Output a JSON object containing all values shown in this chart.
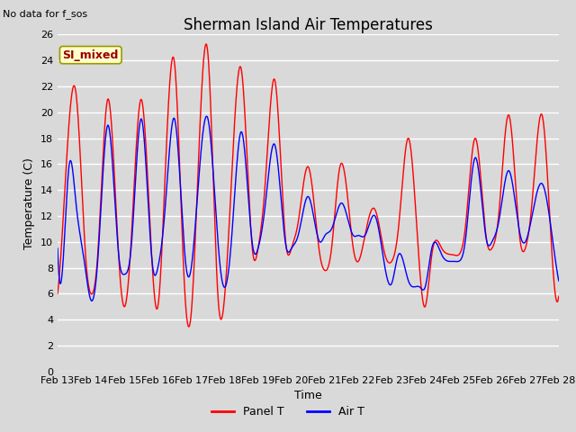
{
  "title": "Sherman Island Air Temperatures",
  "xlabel": "Time",
  "ylabel": "Temperature (C)",
  "top_left_text": "No data for f_sos",
  "legend_label_box": "SI_mixed",
  "legend_entries": [
    "Panel T",
    "Air T"
  ],
  "legend_colors": [
    "red",
    "blue"
  ],
  "ylim": [
    0,
    26
  ],
  "yticks": [
    0,
    2,
    4,
    6,
    8,
    10,
    12,
    14,
    16,
    18,
    20,
    22,
    24,
    26
  ],
  "xtick_labels": [
    "Feb 13",
    "Feb 14",
    "Feb 15",
    "Feb 16",
    "Feb 17",
    "Feb 18",
    "Feb 19",
    "Feb 20",
    "Feb 21",
    "Feb 22",
    "Feb 23",
    "Feb 24",
    "Feb 25",
    "Feb 26",
    "Feb 27",
    "Feb 28"
  ],
  "background_color": "#d9d9d9",
  "plot_bg_color": "#d9d9d9",
  "grid_color": "#f0f0f0",
  "box_facecolor": "#ffffcc",
  "box_edgecolor": "#999900",
  "box_text_color": "#990000",
  "title_fontsize": 12,
  "axis_label_fontsize": 9,
  "tick_fontsize": 8,
  "panel_key_x": [
    0.0,
    0.25,
    0.55,
    0.85,
    1.0,
    1.2,
    1.5,
    1.85,
    2.0,
    2.2,
    2.5,
    2.85,
    3.0,
    3.2,
    3.5,
    3.8,
    4.0,
    4.15,
    4.5,
    4.8,
    5.0,
    5.2,
    5.5,
    5.85,
    6.0,
    6.2,
    6.5,
    6.85,
    7.0,
    7.2,
    7.5,
    7.85,
    8.0,
    8.2,
    8.45,
    8.7,
    8.85,
    9.0,
    9.2,
    9.5,
    9.8,
    10.0,
    10.2,
    10.5,
    10.85,
    11.0,
    11.2,
    11.5,
    11.85,
    12.0,
    12.2,
    12.5,
    12.85,
    13.0,
    13.2,
    13.5,
    13.85,
    14.0,
    14.2,
    14.5,
    14.8,
    15.0
  ],
  "panel_key_y": [
    6.0,
    15.5,
    21.5,
    8.5,
    6.0,
    9.0,
    21.0,
    8.0,
    5.0,
    10.0,
    21.0,
    7.5,
    5.0,
    14.0,
    23.8,
    6.5,
    4.5,
    12.0,
    24.5,
    5.8,
    5.8,
    14.5,
    23.3,
    9.0,
    9.5,
    14.0,
    22.5,
    9.5,
    9.5,
    11.5,
    15.8,
    9.0,
    7.8,
    9.5,
    15.8,
    13.0,
    9.5,
    8.5,
    10.5,
    12.5,
    9.0,
    8.5,
    11.0,
    18.0,
    7.5,
    5.0,
    9.0,
    9.5,
    9.0,
    9.0,
    11.0,
    18.0,
    10.0,
    9.5,
    12.0,
    19.8,
    10.0,
    9.5,
    13.0,
    19.8,
    9.0,
    5.8
  ],
  "air_key_x": [
    0.0,
    0.15,
    0.35,
    0.55,
    0.8,
    1.0,
    1.2,
    1.5,
    1.85,
    2.0,
    2.2,
    2.5,
    2.85,
    3.0,
    3.2,
    3.5,
    3.85,
    4.0,
    4.2,
    4.5,
    4.85,
    5.0,
    5.2,
    5.5,
    5.85,
    6.0,
    6.2,
    6.5,
    6.85,
    7.0,
    7.2,
    7.5,
    7.85,
    8.0,
    8.2,
    8.5,
    8.85,
    9.0,
    9.2,
    9.5,
    9.8,
    10.0,
    10.2,
    10.5,
    10.85,
    11.0,
    11.2,
    11.5,
    11.85,
    12.0,
    12.2,
    12.5,
    12.85,
    13.0,
    13.2,
    13.5,
    13.85,
    14.0,
    14.2,
    14.5,
    14.8,
    15.0
  ],
  "air_key_y": [
    9.5,
    8.0,
    16.0,
    13.0,
    8.5,
    5.5,
    8.5,
    19.0,
    8.5,
    7.5,
    9.5,
    19.5,
    8.0,
    8.0,
    12.0,
    19.5,
    8.0,
    8.0,
    14.0,
    19.5,
    8.5,
    6.5,
    10.0,
    18.5,
    9.5,
    9.5,
    12.5,
    17.5,
    9.5,
    9.5,
    10.5,
    13.5,
    10.0,
    10.5,
    11.0,
    13.0,
    10.5,
    10.5,
    10.5,
    12.0,
    8.0,
    6.8,
    9.0,
    7.0,
    6.5,
    6.5,
    9.5,
    9.0,
    8.5,
    8.5,
    10.0,
    16.5,
    10.0,
    10.0,
    11.5,
    15.5,
    10.5,
    10.0,
    12.0,
    14.5,
    10.5,
    7.0
  ]
}
